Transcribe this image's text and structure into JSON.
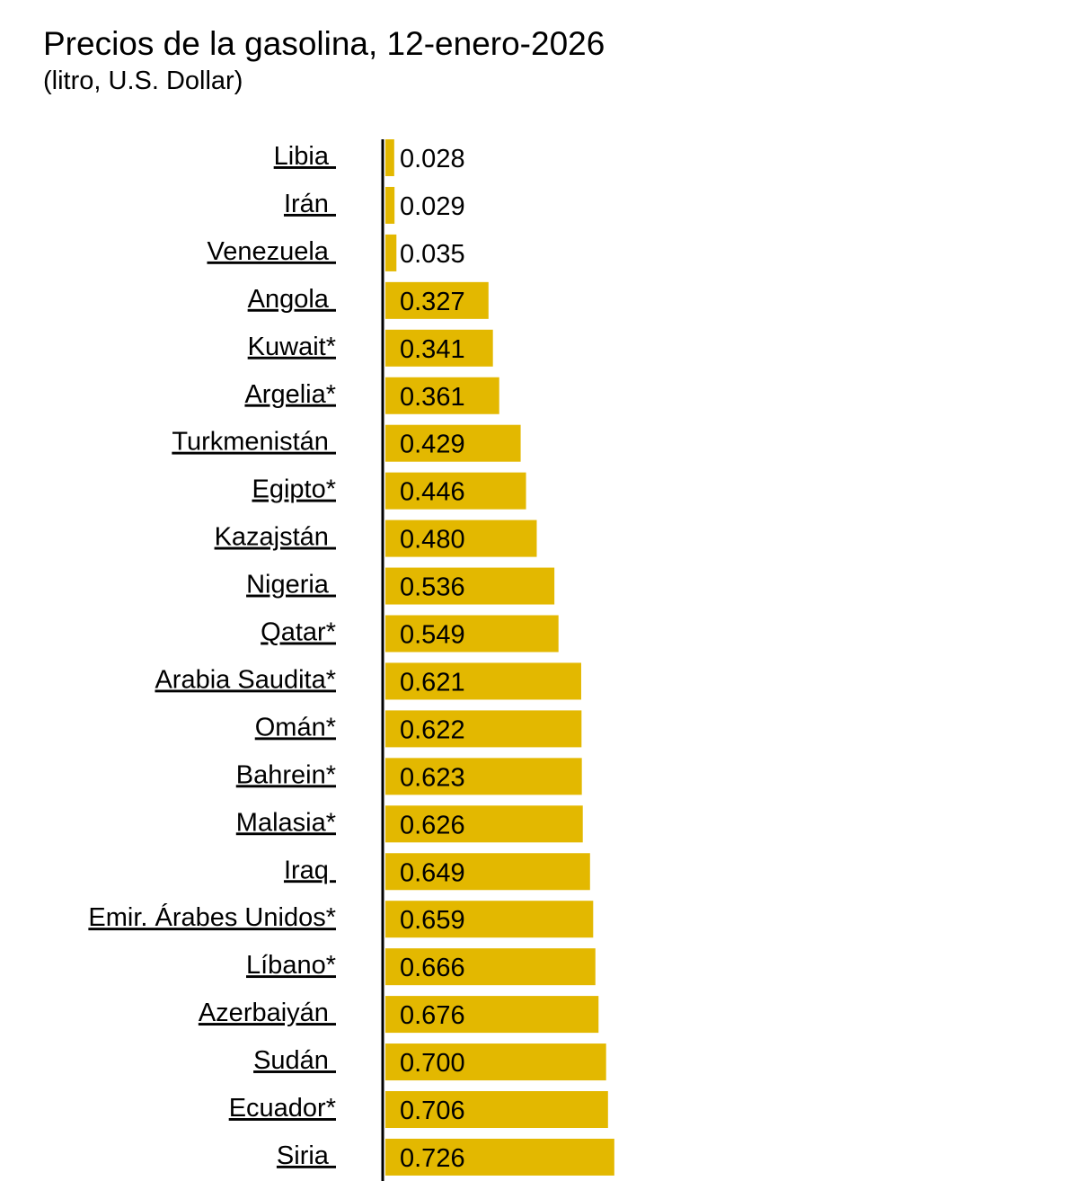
{
  "chart_data": {
    "type": "bar",
    "orientation": "horizontal",
    "title": "Precios de la gasolina, 12-enero-2026",
    "subtitle": "(litro, U.S. Dollar)",
    "categories": [
      "Libia",
      "Irán",
      "Venezuela",
      "Angola",
      "Kuwait*",
      "Argelia*",
      "Turkmenistán",
      "Egipto*",
      "Kazajstán",
      "Nigeria",
      "Qatar*",
      "Arabia Saudita*",
      "Omán*",
      "Bahrein*",
      "Malasia*",
      "Iraq",
      "Emir. Árabes Unidos*",
      "Líbano*",
      "Azerbaiyán",
      "Sudán",
      "Ecuador*",
      "Siria"
    ],
    "values": [
      0.028,
      0.029,
      0.035,
      0.327,
      0.341,
      0.361,
      0.429,
      0.446,
      0.48,
      0.536,
      0.549,
      0.621,
      0.622,
      0.623,
      0.626,
      0.649,
      0.659,
      0.666,
      0.676,
      0.7,
      0.706,
      0.726
    ],
    "data_labels": [
      "0.028",
      "0.029",
      "0.035",
      "0.327",
      "0.341",
      "0.361",
      "0.429",
      "0.446",
      "0.480",
      "0.536",
      "0.549",
      "0.621",
      "0.622",
      "0.623",
      "0.626",
      "0.649",
      "0.659",
      "0.666",
      "0.676",
      "0.700",
      "0.706",
      "0.726"
    ],
    "bar_color": "#E3B800",
    "grid": false,
    "legend": "none"
  }
}
